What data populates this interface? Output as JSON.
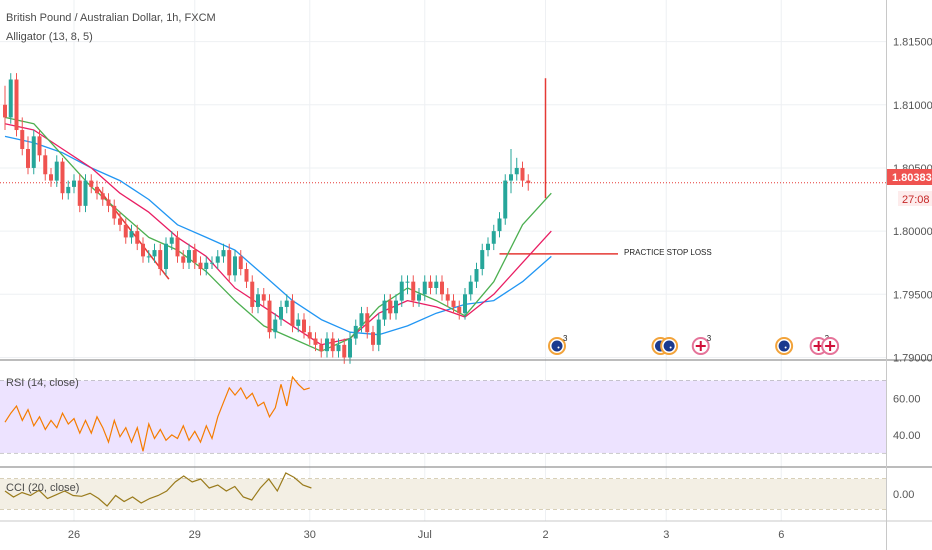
{
  "header": {
    "symbol": "British Pound / Australian Dollar, 1h, FXCM",
    "indicator": "Alligator (13, 8, 5)"
  },
  "rsi_label": "RSI (14, close)",
  "cci_label": "CCI (20, close)",
  "annotation": {
    "text": "PRACTICE STOP LOSS",
    "price": 1.7982
  },
  "price_tag": {
    "value": "1.80383",
    "timer": "27:08"
  },
  "x_axis": [
    {
      "label": "26",
      "slot": 12
    },
    {
      "label": "29",
      "slot": 33
    },
    {
      "label": "30",
      "slot": 53
    },
    {
      "label": "Jul",
      "slot": 73
    },
    {
      "label": "2",
      "slot": 94
    },
    {
      "label": "3",
      "slot": 115
    },
    {
      "label": "6",
      "slot": 135
    }
  ],
  "events": [
    {
      "slot": 96,
      "flag": "au",
      "count": "3"
    },
    {
      "slot": 114,
      "flag": "au",
      "count": ""
    },
    {
      "slot": 115.5,
      "flag": "au",
      "count": ""
    },
    {
      "slot": 121,
      "flag": "uk",
      "count": "3"
    },
    {
      "slot": 135.5,
      "flag": "au",
      "count": ""
    },
    {
      "slot": 141.5,
      "flag": "uk",
      "count": "3"
    },
    {
      "slot": 143.5,
      "flag": "uk",
      "count": ""
    }
  ],
  "colors": {
    "up": "#26a69a",
    "down": "#ef5350",
    "jaw": "#2196f3",
    "teeth": "#e91e63",
    "lips": "#4caf50",
    "rsi_line": "#f57c00",
    "rsi_band": "#ede3ff",
    "cci_line": "#9a7b1c",
    "cci_band": "#f3efe4",
    "annotation": "#e53935"
  },
  "chart_data": [
    {
      "type": "candlestick",
      "title": "British Pound / Australian Dollar, 1h, FXCM",
      "ylim": [
        1.7898,
        1.8175
      ],
      "yticks": [
        1.79,
        1.795,
        1.8,
        1.805,
        1.81,
        1.815
      ],
      "current_price": 1.80383,
      "x": [
        0,
        1,
        2,
        3,
        4,
        5,
        6,
        7,
        8,
        9,
        10,
        11,
        12,
        13,
        14,
        15,
        16,
        17,
        18,
        19,
        20,
        21,
        22,
        23,
        24,
        25,
        26,
        27,
        28,
        29,
        30,
        31,
        32,
        33,
        34,
        35,
        36,
        37,
        38,
        39,
        40,
        41,
        42,
        43,
        44,
        45,
        46,
        47,
        48,
        49,
        50,
        51,
        52,
        53,
        54,
        55,
        56,
        57,
        58,
        59,
        60,
        61,
        62,
        63,
        64,
        65,
        66,
        67,
        67,
        68,
        69,
        70,
        71,
        72,
        73,
        74,
        75,
        76,
        77,
        78,
        79,
        80,
        81,
        82,
        83,
        84,
        85,
        86,
        87,
        88,
        89,
        90,
        91
      ],
      "open": [
        1.81,
        1.809,
        1.812,
        1.808,
        1.8065,
        1.805,
        1.8075,
        1.806,
        1.8045,
        1.804,
        1.8055,
        1.803,
        1.8035,
        1.804,
        1.802,
        1.804,
        1.8035,
        1.803,
        1.8025,
        1.802,
        1.801,
        1.8005,
        1.7995,
        1.8,
        1.799,
        1.798,
        1.798,
        1.7985,
        1.797,
        1.799,
        1.7995,
        1.798,
        1.7975,
        1.7985,
        1.7975,
        1.797,
        1.7975,
        1.7975,
        1.798,
        1.7985,
        1.7965,
        1.798,
        1.797,
        1.796,
        1.794,
        1.795,
        1.7945,
        1.792,
        1.793,
        1.794,
        1.7945,
        1.7925,
        1.793,
        1.792,
        1.7915,
        1.791,
        1.7905,
        1.7915,
        1.7905,
        1.791,
        1.79,
        1.7915,
        1.7925,
        1.7935,
        1.792,
        1.791,
        1.793,
        1.7945,
        1.7945,
        1.7935,
        1.7945,
        1.796,
        1.796,
        1.7945,
        1.795,
        1.796,
        1.7955,
        1.796,
        1.795,
        1.7945,
        1.794,
        1.7935,
        1.795,
        1.796,
        1.797,
        1.7985,
        1.799,
        1.8,
        1.801,
        1.804,
        1.8045,
        1.805,
        1.804
      ],
      "close": [
        1.809,
        1.812,
        1.808,
        1.8065,
        1.805,
        1.8075,
        1.806,
        1.8045,
        1.804,
        1.8055,
        1.803,
        1.8035,
        1.804,
        1.802,
        1.804,
        1.8035,
        1.803,
        1.8025,
        1.802,
        1.801,
        1.8005,
        1.7995,
        1.8,
        1.799,
        1.798,
        1.798,
        1.7985,
        1.797,
        1.799,
        1.7995,
        1.798,
        1.7975,
        1.7985,
        1.7975,
        1.797,
        1.7975,
        1.7975,
        1.798,
        1.7985,
        1.7965,
        1.798,
        1.797,
        1.796,
        1.794,
        1.795,
        1.7945,
        1.792,
        1.793,
        1.794,
        1.7945,
        1.7925,
        1.793,
        1.792,
        1.7915,
        1.791,
        1.7905,
        1.7915,
        1.7905,
        1.791,
        1.79,
        1.7915,
        1.7925,
        1.7935,
        1.792,
        1.791,
        1.793,
        1.7945,
        1.7935,
        1.7935,
        1.7945,
        1.796,
        1.796,
        1.7945,
        1.795,
        1.796,
        1.7955,
        1.796,
        1.795,
        1.7945,
        1.794,
        1.7935,
        1.795,
        1.796,
        1.797,
        1.7985,
        1.799,
        1.8,
        1.801,
        1.804,
        1.8045,
        1.805,
        1.804,
        1.8038
      ],
      "high": [
        1.8115,
        1.8125,
        1.8125,
        1.809,
        1.8075,
        1.808,
        1.808,
        1.8065,
        1.805,
        1.806,
        1.8058,
        1.804,
        1.8045,
        1.8045,
        1.8045,
        1.8045,
        1.804,
        1.8035,
        1.803,
        1.8025,
        1.8015,
        1.801,
        1.8005,
        1.8005,
        1.7995,
        1.7985,
        1.799,
        1.799,
        1.7995,
        1.8,
        1.8,
        1.7985,
        1.799,
        1.799,
        1.798,
        1.798,
        1.798,
        1.7985,
        1.799,
        1.799,
        1.7985,
        1.7985,
        1.7975,
        1.7965,
        1.7955,
        1.7955,
        1.795,
        1.7935,
        1.7945,
        1.795,
        1.795,
        1.7935,
        1.7935,
        1.7925,
        1.792,
        1.7915,
        1.792,
        1.792,
        1.7915,
        1.7915,
        1.792,
        1.793,
        1.794,
        1.794,
        1.7925,
        1.7935,
        1.795,
        1.795,
        1.795,
        1.795,
        1.7965,
        1.7965,
        1.7965,
        1.7955,
        1.7965,
        1.7965,
        1.7965,
        1.7965,
        1.7955,
        1.795,
        1.7945,
        1.7955,
        1.7965,
        1.7975,
        1.799,
        1.7995,
        1.8005,
        1.8015,
        1.8045,
        1.8065,
        1.8058,
        1.8055,
        1.8045
      ],
      "low": [
        1.808,
        1.8085,
        1.8075,
        1.806,
        1.8045,
        1.8045,
        1.8055,
        1.804,
        1.8035,
        1.8035,
        1.8025,
        1.8025,
        1.803,
        1.8015,
        1.8015,
        1.803,
        1.8025,
        1.802,
        1.8015,
        1.8005,
        1.8,
        1.799,
        1.799,
        1.7985,
        1.7975,
        1.7975,
        1.7975,
        1.7965,
        1.7965,
        1.7985,
        1.7975,
        1.797,
        1.797,
        1.797,
        1.7965,
        1.7965,
        1.797,
        1.797,
        1.7975,
        1.796,
        1.796,
        1.7965,
        1.7955,
        1.7935,
        1.7935,
        1.794,
        1.7915,
        1.7915,
        1.7925,
        1.7935,
        1.792,
        1.792,
        1.7915,
        1.791,
        1.7905,
        1.79,
        1.79,
        1.79,
        1.79,
        1.7895,
        1.7895,
        1.791,
        1.792,
        1.7915,
        1.7905,
        1.7905,
        1.7925,
        1.793,
        1.793,
        1.793,
        1.794,
        1.795,
        1.794,
        1.794,
        1.7945,
        1.795,
        1.795,
        1.7945,
        1.794,
        1.7935,
        1.793,
        1.793,
        1.7945,
        1.7955,
        1.7965,
        1.798,
        1.7985,
        1.7995,
        1.8005,
        1.803,
        1.804,
        1.8035,
        1.8032
      ],
      "jaw": [
        [
          0,
          1.8075
        ],
        [
          5,
          1.807
        ],
        [
          10,
          1.8062
        ],
        [
          15,
          1.805
        ],
        [
          20,
          1.804
        ],
        [
          25,
          1.8025
        ],
        [
          30,
          1.8005
        ],
        [
          35,
          1.7995
        ],
        [
          40,
          1.7985
        ],
        [
          45,
          1.7965
        ],
        [
          50,
          1.7945
        ],
        [
          55,
          1.793
        ],
        [
          60,
          1.792
        ],
        [
          65,
          1.7918
        ],
        [
          70,
          1.7925
        ],
        [
          75,
          1.7935
        ],
        [
          80,
          1.7942
        ],
        [
          85,
          1.7945
        ],
        [
          90,
          1.796
        ],
        [
          95,
          1.798
        ]
      ],
      "teeth": [
        [
          0,
          1.8085
        ],
        [
          5,
          1.808
        ],
        [
          10,
          1.8065
        ],
        [
          15,
          1.805
        ],
        [
          20,
          1.803
        ],
        [
          25,
          1.8015
        ],
        [
          30,
          1.7995
        ],
        [
          35,
          1.798
        ],
        [
          40,
          1.7955
        ],
        [
          45,
          1.794
        ],
        [
          50,
          1.7925
        ],
        [
          55,
          1.791
        ],
        [
          60,
          1.7915
        ],
        [
          65,
          1.7935
        ],
        [
          70,
          1.7945
        ],
        [
          75,
          1.794
        ],
        [
          80,
          1.7932
        ],
        [
          85,
          1.795
        ],
        [
          90,
          1.7975
        ],
        [
          95,
          1.8
        ]
      ],
      "lips": [
        [
          0,
          1.809
        ],
        [
          5,
          1.8085
        ],
        [
          10,
          1.806
        ],
        [
          15,
          1.8035
        ],
        [
          20,
          1.8015
        ],
        [
          25,
          1.7995
        ],
        [
          30,
          1.7985
        ],
        [
          35,
          1.7968
        ],
        [
          40,
          1.7945
        ],
        [
          45,
          1.7925
        ],
        [
          50,
          1.7915
        ],
        [
          55,
          1.7905
        ],
        [
          60,
          1.7915
        ],
        [
          65,
          1.794
        ],
        [
          70,
          1.7955
        ],
        [
          75,
          1.7945
        ],
        [
          80,
          1.7933
        ],
        [
          85,
          1.796
        ],
        [
          90,
          1.8005
        ],
        [
          95,
          1.803
        ]
      ]
    },
    {
      "type": "line",
      "title": "RSI (14, close)",
      "ylim": [
        25,
        77
      ],
      "yticks": [
        40,
        60
      ],
      "bands": [
        30,
        70
      ],
      "points": [
        [
          0,
          47
        ],
        [
          2,
          52
        ],
        [
          4,
          56
        ],
        [
          6,
          48
        ],
        [
          8,
          54
        ],
        [
          10,
          45
        ],
        [
          12,
          50
        ],
        [
          14,
          43
        ],
        [
          16,
          48
        ],
        [
          18,
          44
        ],
        [
          20,
          52
        ],
        [
          22,
          46
        ],
        [
          24,
          49
        ],
        [
          26,
          41
        ],
        [
          28,
          48
        ],
        [
          30,
          41
        ],
        [
          32,
          50
        ],
        [
          34,
          44
        ],
        [
          36,
          36
        ],
        [
          38,
          48
        ],
        [
          40,
          39
        ],
        [
          42,
          44
        ],
        [
          44,
          36
        ],
        [
          46,
          44
        ],
        [
          48,
          31
        ],
        [
          50,
          46
        ],
        [
          52,
          38
        ],
        [
          54,
          43
        ],
        [
          56,
          37
        ],
        [
          58,
          40
        ],
        [
          60,
          38
        ],
        [
          62,
          45
        ],
        [
          64,
          37
        ],
        [
          66,
          42
        ],
        [
          68,
          36
        ],
        [
          70,
          45
        ],
        [
          72,
          38
        ],
        [
          74,
          50
        ],
        [
          76,
          58
        ],
        [
          78,
          66
        ],
        [
          80,
          62
        ],
        [
          82,
          66
        ],
        [
          84,
          60
        ],
        [
          86,
          63
        ],
        [
          88,
          56
        ],
        [
          90,
          58
        ],
        [
          92,
          50
        ],
        [
          94,
          55
        ],
        [
          96,
          68
        ],
        [
          98,
          56
        ],
        [
          100,
          72
        ],
        [
          102,
          68
        ],
        [
          104,
          65
        ],
        [
          106,
          66
        ]
      ]
    },
    {
      "type": "line",
      "title": "CCI (20, close)",
      "ylim": [
        -160,
        160
      ],
      "yticks": [
        0
      ],
      "bands": [
        -100,
        100
      ],
      "points": [
        [
          0,
          20
        ],
        [
          4,
          -20
        ],
        [
          8,
          10
        ],
        [
          12,
          -10
        ],
        [
          16,
          25
        ],
        [
          20,
          -30
        ],
        [
          24,
          -5
        ],
        [
          28,
          20
        ],
        [
          32,
          -10
        ],
        [
          36,
          -15
        ],
        [
          40,
          5
        ],
        [
          44,
          -30
        ],
        [
          48,
          -80
        ],
        [
          52,
          -10
        ],
        [
          56,
          -50
        ],
        [
          60,
          -20
        ],
        [
          64,
          -60
        ],
        [
          68,
          -30
        ],
        [
          72,
          -10
        ],
        [
          76,
          20
        ],
        [
          80,
          80
        ],
        [
          84,
          120
        ],
        [
          88,
          80
        ],
        [
          92,
          100
        ],
        [
          96,
          40
        ],
        [
          100,
          60
        ],
        [
          104,
          20
        ],
        [
          108,
          50
        ],
        [
          112,
          -20
        ],
        [
          116,
          -40
        ],
        [
          120,
          40
        ],
        [
          124,
          100
        ],
        [
          128,
          20
        ],
        [
          132,
          140
        ],
        [
          136,
          110
        ],
        [
          140,
          60
        ],
        [
          144,
          40
        ]
      ]
    }
  ]
}
